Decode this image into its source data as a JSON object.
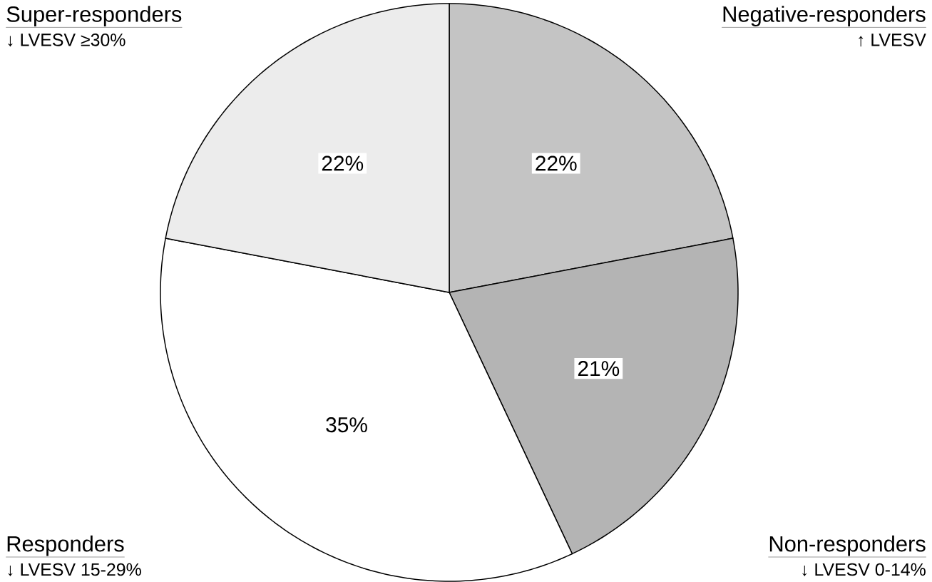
{
  "chart_data": {
    "type": "pie",
    "categories": [
      "Negative-responders",
      "Non-responders",
      "Responders",
      "Super-responders"
    ],
    "values": [
      22,
      21,
      35,
      22
    ],
    "colors": [
      "#c4c4c4",
      "#b4b4b4",
      "#ffffff",
      "#ececec"
    ],
    "value_labels": [
      "22%",
      "21%",
      "35%",
      "22%"
    ],
    "annotations": [
      "↑ LVESV",
      "↓ LVESV 0-14%",
      "↓ LVESV 15-29%",
      "↓ LVESV ≥30%"
    ]
  }
}
